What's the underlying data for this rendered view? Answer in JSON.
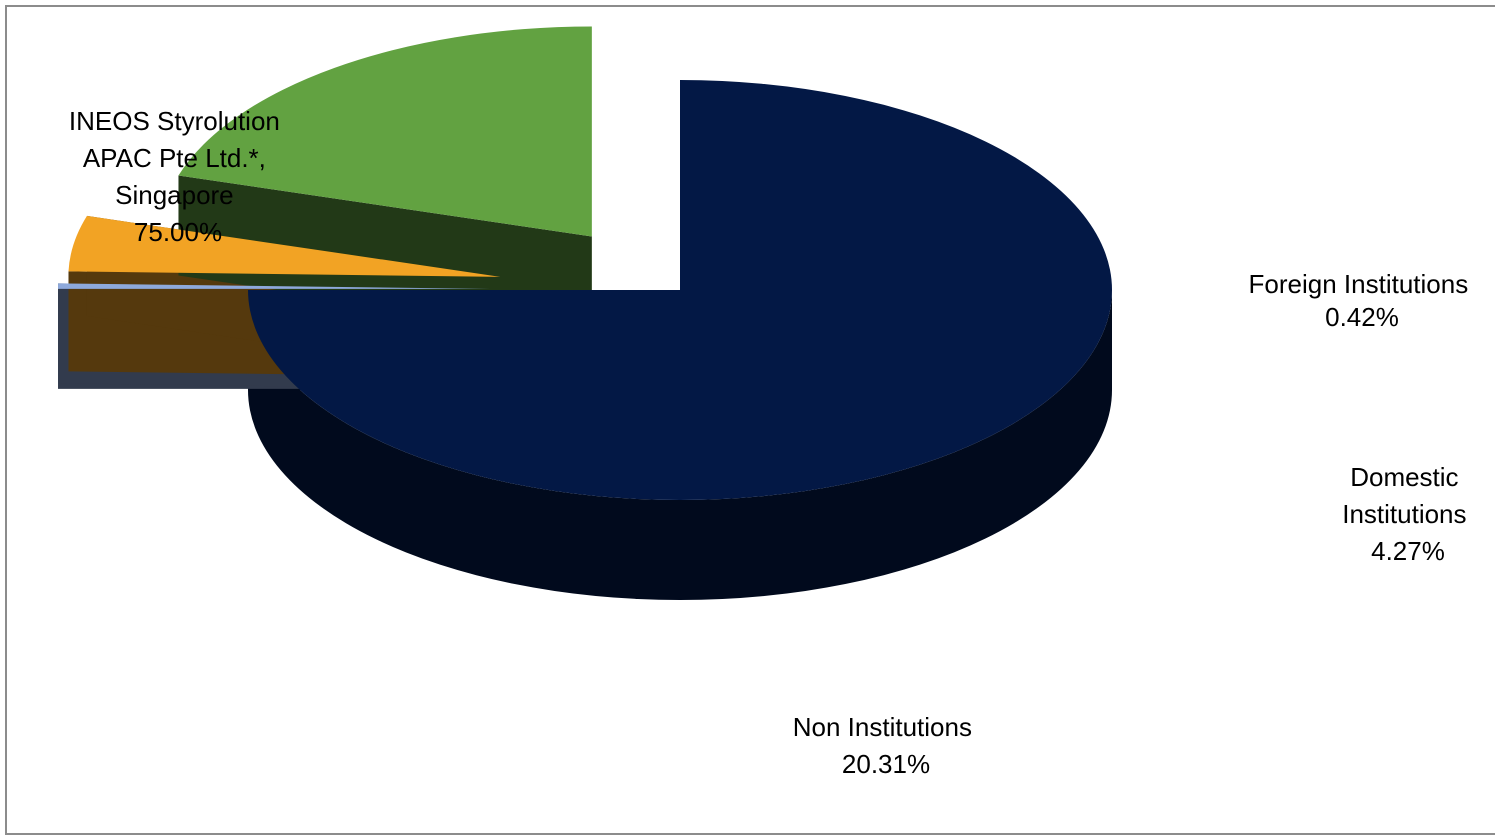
{
  "chart_data": {
    "type": "pie",
    "style": "3d-exploded",
    "title": "",
    "slices": [
      {
        "category_lines": [
          "INEOS Styrolution",
          "APAC Pte Ltd.*,",
          "Singapore"
        ],
        "percent_label": "75.00%",
        "value": 75.0,
        "color": "#031845"
      },
      {
        "category_lines": [
          "Foreign Institutions"
        ],
        "percent_label": "0.42%",
        "value": 0.42,
        "color": "#8ea9db"
      },
      {
        "category_lines": [
          "Domestic",
          "Institutions"
        ],
        "percent_label": "4.27%",
        "value": 4.27,
        "color": "#f2a324"
      },
      {
        "category_lines": [
          "Non Institutions"
        ],
        "percent_label": "20.31%",
        "value": 20.31,
        "color": "#62a241"
      }
    ]
  }
}
